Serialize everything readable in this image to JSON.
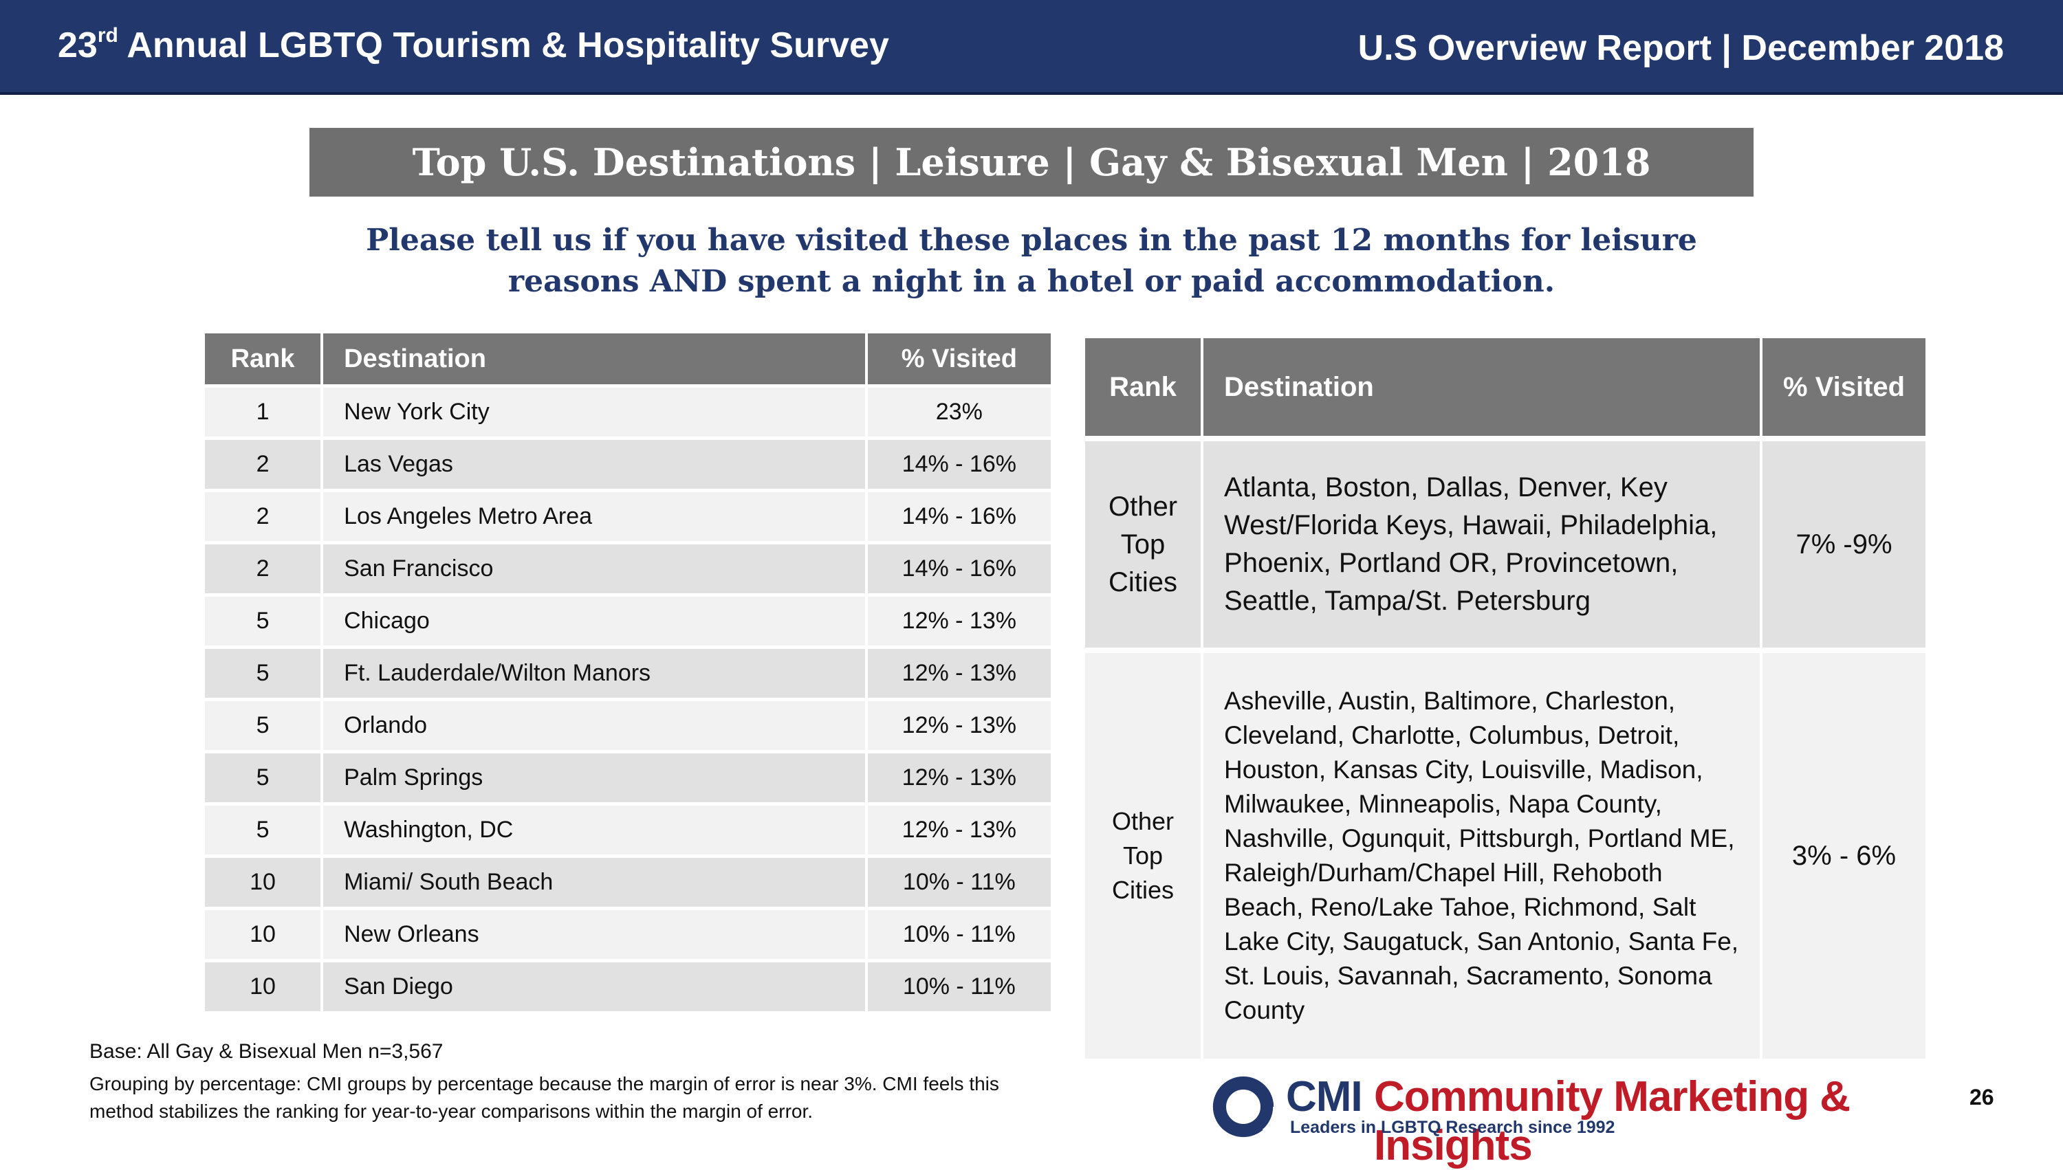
{
  "header": {
    "left_num": "23",
    "left_sup": "rd",
    "left_rest": " Annual LGBTQ Tourism & Hospitality Survey",
    "right": "U.S Overview Report | December 2018"
  },
  "title": "Top U.S. Destinations | Leisure | Gay & Bisexual Men | 2018",
  "question_line1": "Please tell us if you have visited these places in the past 12 months for leisure",
  "question_line2": "reasons AND spent a night in a hotel or paid accommodation.",
  "left_table": {
    "headers": {
      "rank": "Rank",
      "destination": "Destination",
      "visited": "% Visited"
    },
    "rows": [
      {
        "rank": "1",
        "destination": "New York City",
        "visited": "23%"
      },
      {
        "rank": "2",
        "destination": "Las Vegas",
        "visited": "14% - 16%"
      },
      {
        "rank": "2",
        "destination": "Los Angeles Metro Area",
        "visited": "14% - 16%"
      },
      {
        "rank": "2",
        "destination": "San Francisco",
        "visited": "14% - 16%"
      },
      {
        "rank": "5",
        "destination": "Chicago",
        "visited": "12% - 13%"
      },
      {
        "rank": "5",
        "destination": "Ft. Lauderdale/Wilton Manors",
        "visited": "12% - 13%"
      },
      {
        "rank": "5",
        "destination": "Orlando",
        "visited": "12% - 13%"
      },
      {
        "rank": "5",
        "destination": "Palm Springs",
        "visited": "12% - 13%"
      },
      {
        "rank": "5",
        "destination": "Washington, DC",
        "visited": "12% - 13%"
      },
      {
        "rank": "10",
        "destination": "Miami/ South Beach",
        "visited": "10% - 11%"
      },
      {
        "rank": "10",
        "destination": "New Orleans",
        "visited": "10% - 11%"
      },
      {
        "rank": "10",
        "destination": "San Diego",
        "visited": "10% - 11%"
      }
    ]
  },
  "right_table": {
    "headers": {
      "rank": "Rank",
      "destination": "Destination",
      "visited": "% Visited"
    },
    "rows": [
      {
        "rank_lines": [
          "Other",
          "Top",
          "Cities"
        ],
        "destination_lines": [
          "Atlanta, Boston, Dallas, Denver, Key",
          "West/Florida Keys, Hawaii, Philadelphia,",
          "Phoenix, Portland OR, Provincetown,",
          "Seattle, Tampa/St. Petersburg"
        ],
        "visited": "7% -9%"
      },
      {
        "rank_lines": [
          "Other",
          "Top",
          "Cities"
        ],
        "destination_lines": [
          "Asheville, Austin, Baltimore, Charleston,",
          "Cleveland, Charlotte, Columbus, Detroit,",
          "Houston, Kansas City, Louisville, Madison,",
          "Milwaukee, Minneapolis, Napa County,",
          "Nashville, Ogunquit, Pittsburgh, Portland ME,",
          "Raleigh/Durham/Chapel Hill, Rehoboth",
          "Beach, Reno/Lake Tahoe, Richmond, Salt",
          "Lake City, Saugatuck, San Antonio, Santa Fe,",
          "St. Louis, Savannah, Sacramento, Sonoma",
          "County"
        ],
        "visited": "3% - 6%"
      }
    ]
  },
  "base": "Base: All Gay & Bisexual Men n=3,567",
  "note_line1": "Grouping by percentage: CMI groups by percentage because the margin of error is near 3%. CMI feels this",
  "note_line2": "method stabilizes the ranking for year-to-year comparisons within the margin of error.",
  "logo": {
    "cmi": "CMI",
    "name": "Community Marketing & Insights",
    "tagline": "Leaders in LGBTQ Research since 1992"
  },
  "page_number": "26",
  "colors": {
    "header_blue": "#22376c",
    "table_header_gray": "#767676",
    "logo_red": "#c01c28"
  }
}
